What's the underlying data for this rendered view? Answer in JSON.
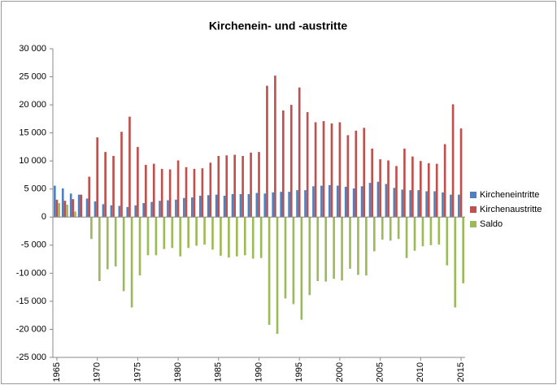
{
  "chart_data": {
    "type": "bar",
    "title": "Kirchenein- und -austritte",
    "categories": [
      "1965",
      null,
      null,
      null,
      null,
      "1970",
      null,
      null,
      null,
      null,
      "1975",
      null,
      null,
      null,
      null,
      "1980",
      null,
      null,
      null,
      null,
      "1985",
      null,
      null,
      null,
      null,
      "1990",
      null,
      null,
      null,
      null,
      "1995",
      null,
      null,
      null,
      null,
      "2000",
      null,
      null,
      null,
      null,
      "2005",
      null,
      null,
      null,
      null,
      "2010",
      null,
      null,
      null,
      null,
      "2015"
    ],
    "series": [
      {
        "name": "Kircheneintritte",
        "color": "#4f81bd",
        "values": [
          5600,
          5100,
          4200,
          4000,
          3300,
          2800,
          2300,
          2100,
          2000,
          1800,
          2100,
          2500,
          2700,
          2900,
          3000,
          3100,
          3400,
          3500,
          3800,
          3900,
          4000,
          3800,
          4100,
          4100,
          4100,
          4300,
          4200,
          4400,
          4500,
          4500,
          4800,
          4800,
          5500,
          5600,
          5700,
          5600,
          5400,
          5100,
          5500,
          6100,
          6300,
          5900,
          5200,
          4900,
          4800,
          4800,
          4600,
          4600,
          4400,
          4000,
          4000
        ]
      },
      {
        "name": "Kirchenaustritte",
        "color": "#c0504d",
        "values": [
          3100,
          2900,
          3200,
          4000,
          7200,
          14200,
          11600,
          10900,
          15200,
          17900,
          12500,
          9300,
          9500,
          8600,
          8500,
          10100,
          8900,
          8600,
          8700,
          9700,
          10900,
          11000,
          11100,
          10900,
          11500,
          11600,
          23400,
          25200,
          19000,
          20000,
          23100,
          18700,
          16900,
          17100,
          16700,
          16900,
          14600,
          15400,
          15900,
          12200,
          10300,
          10100,
          9100,
          12200,
          10800,
          10000,
          9600,
          9500,
          13000,
          20100,
          15800
        ]
      },
      {
        "name": "Saldo",
        "color": "#9bbb59",
        "values": [
          2500,
          2200,
          1000,
          0,
          -3900,
          -11400,
          -9300,
          -8800,
          -13200,
          -16100,
          -10400,
          -6800,
          -6800,
          -5700,
          -5500,
          -7000,
          -5500,
          -5100,
          -4900,
          -5800,
          -6900,
          -7200,
          -7000,
          -6800,
          -7400,
          -7300,
          -19200,
          -20800,
          -14500,
          -15500,
          -18300,
          -13900,
          -11400,
          -11500,
          -11000,
          -11300,
          -9200,
          -10300,
          -10400,
          -6100,
          -4000,
          -4200,
          -3900,
          -7300,
          -6000,
          -5200,
          -5000,
          -4900,
          -8600,
          -16100,
          -11800
        ]
      }
    ],
    "ylim": [
      -25000,
      30000
    ],
    "yticks": [
      {
        "value": -25000,
        "label": "-25 000"
      },
      {
        "value": -20000,
        "label": "-20 000"
      },
      {
        "value": -15000,
        "label": "-15 000"
      },
      {
        "value": -10000,
        "label": "-10 000"
      },
      {
        "value": -5000,
        "label": "-5 000"
      },
      0,
      {
        "value": 5000,
        "label": "5 000"
      },
      {
        "value": 10000,
        "label": "10 000"
      },
      {
        "value": 15000,
        "label": "15 000"
      },
      {
        "value": 20000,
        "label": "20 000"
      },
      {
        "value": 25000,
        "label": "25 000"
      },
      {
        "value": 30000,
        "label": "30 000"
      }
    ],
    "grid": false,
    "legend": "right"
  }
}
